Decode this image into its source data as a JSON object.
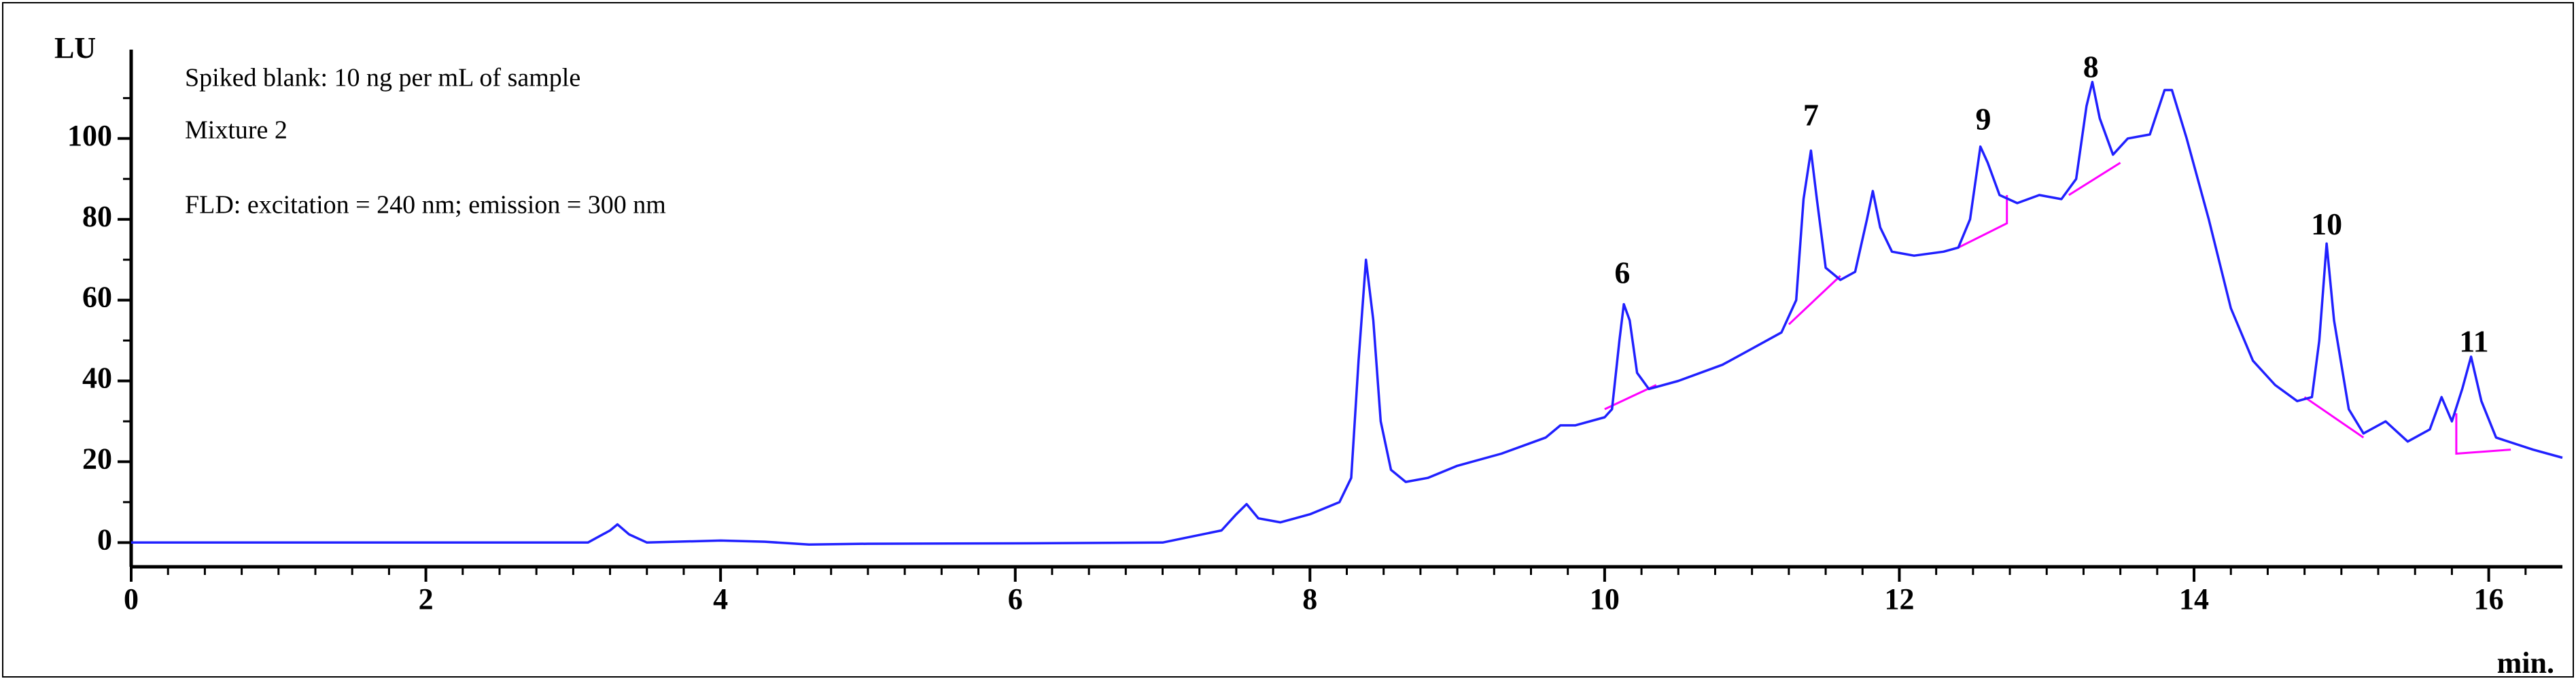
{
  "chart_data": {
    "type": "line",
    "annotations": [
      "Spiked blank: 10 ng per mL of sample",
      "Mixture 2",
      "FLD: excitation = 240 nm; emission = 300 nm"
    ],
    "ylabel": "LU",
    "xlabel": "min.",
    "xlim": [
      0,
      16.5
    ],
    "ylim": [
      -6,
      122
    ],
    "xticks": [
      0,
      2,
      4,
      6,
      8,
      10,
      12,
      14,
      16
    ],
    "yticks": [
      0,
      20,
      40,
      60,
      80,
      100
    ],
    "xminorticks": [
      0.25,
      0.5,
      0.75,
      1,
      1.25,
      1.5,
      1.75,
      2.25,
      2.5,
      2.75,
      3,
      3.25,
      3.5,
      3.75,
      4.25,
      4.5,
      4.75,
      5,
      5.25,
      5.5,
      5.75,
      6.25,
      6.5,
      6.75,
      7,
      7.25,
      7.5,
      7.75,
      8.25,
      8.5,
      8.75,
      9,
      9.25,
      9.5,
      9.75,
      10.25,
      10.5,
      10.75,
      11,
      11.25,
      11.5,
      11.75,
      12.25,
      12.5,
      12.75,
      13,
      13.25,
      13.5,
      13.75,
      14.25,
      14.5,
      14.75,
      15,
      15.25,
      15.5,
      15.75,
      16.25
    ],
    "yminorticks": [
      10,
      30,
      50,
      70,
      90,
      110
    ],
    "x": [
      0,
      3.1,
      3.25,
      3.3,
      3.38,
      3.5,
      4.0,
      4.3,
      4.6,
      5.0,
      6.0,
      7.0,
      7.4,
      7.5,
      7.57,
      7.65,
      7.8,
      8.0,
      8.2,
      8.28,
      8.33,
      8.38,
      8.43,
      8.48,
      8.55,
      8.65,
      8.8,
      9.0,
      9.3,
      9.6,
      9.7,
      9.8,
      10.0,
      10.05,
      10.1,
      10.13,
      10.17,
      10.22,
      10.3,
      10.5,
      10.8,
      11.0,
      11.2,
      11.3,
      11.35,
      11.4,
      11.44,
      11.5,
      11.6,
      11.7,
      11.78,
      11.82,
      11.87,
      11.95,
      12.1,
      12.3,
      12.4,
      12.48,
      12.55,
      12.6,
      12.68,
      12.8,
      12.95,
      13.1,
      13.2,
      13.27,
      13.31,
      13.36,
      13.45,
      13.55,
      13.7,
      13.8,
      13.85,
      13.95,
      14.1,
      14.25,
      14.4,
      14.55,
      14.7,
      14.8,
      14.85,
      14.9,
      14.95,
      15.05,
      15.15,
      15.3,
      15.45,
      15.6,
      15.68,
      15.75,
      15.82,
      15.88,
      15.95,
      16.05,
      16.3,
      16.5
    ],
    "series": [
      {
        "color": "#2020ff",
        "values": [
          0,
          0,
          3,
          4.5,
          2,
          0,
          0.5,
          0.2,
          -0.5,
          -0.3,
          -0.2,
          0,
          3,
          7,
          9.5,
          6,
          5,
          7,
          10,
          16,
          45,
          70,
          55,
          30,
          18,
          15,
          16,
          19,
          22,
          26,
          29,
          29,
          31,
          33,
          50,
          59,
          55,
          42,
          38,
          40,
          44,
          48,
          52,
          60,
          85,
          97,
          85,
          68,
          65,
          67,
          80,
          87,
          78,
          72,
          71,
          72,
          73,
          80,
          98,
          94,
          86,
          84,
          86,
          85,
          90,
          108,
          114,
          105,
          96,
          100,
          101,
          112,
          112,
          100,
          80,
          58,
          45,
          39,
          35,
          36,
          50,
          74,
          55,
          33,
          27,
          30,
          25,
          28,
          36,
          30,
          38,
          46,
          35,
          26,
          23,
          21
        ]
      }
    ],
    "baseline_color": "#ff00ff",
    "baselines": [
      {
        "x": [
          10.0,
          10.35
        ],
        "values": [
          33,
          39
        ]
      },
      {
        "x": [
          11.25,
          11.6
        ],
        "values": [
          54,
          66
        ]
      },
      {
        "x": [
          12.4,
          12.73,
          12.73
        ],
        "values": [
          73,
          79,
          86
        ]
      },
      {
        "x": [
          13.15,
          13.5
        ],
        "values": [
          86,
          94
        ]
      },
      {
        "x": [
          14.75,
          15.15
        ],
        "values": [
          36,
          26
        ]
      },
      {
        "x": [
          15.78,
          15.78,
          16.15
        ],
        "values": [
          32,
          22,
          23
        ]
      }
    ],
    "peak_labels": [
      {
        "label": "6",
        "x": 10.12,
        "y": 66
      },
      {
        "label": "7",
        "x": 11.4,
        "y": 105
      },
      {
        "label": "9",
        "x": 12.57,
        "y": 104
      },
      {
        "label": "8",
        "x": 13.3,
        "y": 117
      },
      {
        "label": "10",
        "x": 14.9,
        "y": 78
      },
      {
        "label": "11",
        "x": 15.9,
        "y": 49
      }
    ]
  }
}
